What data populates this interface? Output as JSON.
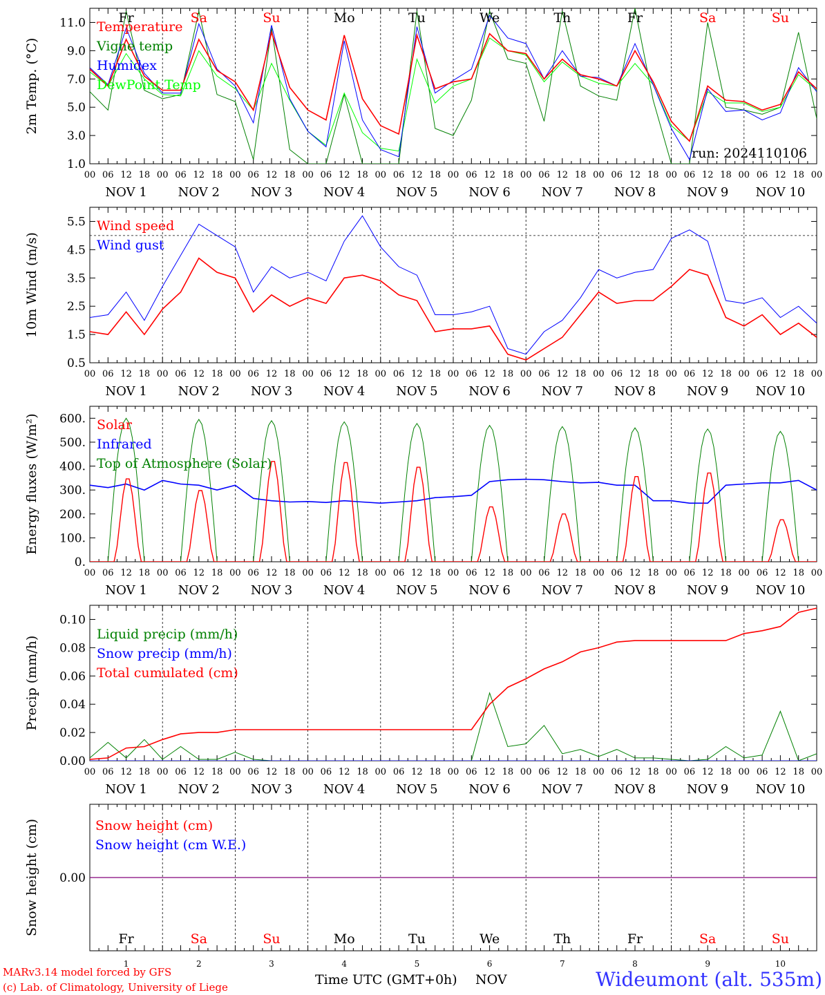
{
  "chart_data": [
    {
      "type": "line",
      "ylabel": "2m Temp. (°C)",
      "ylim": [
        1.0,
        12.0
      ],
      "yticks": [
        "1.0",
        "3.0",
        "5.0",
        "7.0",
        "9.0",
        "11.0"
      ],
      "day_labels": [
        "Fr",
        "Sa",
        "Su",
        "Mo",
        "Tu",
        "We",
        "Th",
        "Fr",
        "Sa",
        "Su"
      ],
      "day_label_colors": [
        "#000000",
        "#ff0000",
        "#ff0000",
        "#000000",
        "#000000",
        "#000000",
        "#000000",
        "#000000",
        "#ff0000",
        "#ff0000"
      ],
      "run_label": "run: 2024110106",
      "x_hours": [
        0,
        6,
        12,
        18,
        24,
        30,
        36,
        42,
        48,
        54,
        60,
        66,
        72,
        78,
        84,
        90,
        96,
        102,
        108,
        114,
        120,
        126,
        132,
        138,
        144,
        150,
        156,
        162,
        168,
        174,
        180,
        186,
        192,
        198,
        204,
        210,
        216,
        222,
        228,
        234,
        240
      ],
      "series": [
        {
          "name": "Temperature",
          "color": "#ff0000",
          "values": [
            7.7,
            6.5,
            9.8,
            7.2,
            6.2,
            6.2,
            9.8,
            7.6,
            6.8,
            4.8,
            10.3,
            6.4,
            4.8,
            4.1,
            10.1,
            5.6,
            3.7,
            3.1,
            10.1,
            6.3,
            6.8,
            7.0,
            10.2,
            9.0,
            8.8,
            7.0,
            8.4,
            7.3,
            7.0,
            6.5,
            9.0,
            6.8,
            4.0,
            2.6,
            6.5,
            5.5,
            5.4,
            4.8,
            5.2,
            7.5,
            6.3
          ]
        },
        {
          "name": "Vigne temp",
          "color": "#008000",
          "values": [
            6.1,
            4.8,
            11.8,
            6.2,
            5.6,
            5.9,
            11.8,
            5.9,
            5.4,
            1.3,
            10.6,
            2.0,
            1.0,
            1.0,
            5.9,
            1.0,
            1.0,
            1.0,
            11.8,
            3.5,
            3.0,
            5.5,
            11.8,
            8.4,
            8.1,
            4.0,
            11.8,
            6.5,
            5.8,
            5.5,
            12.0,
            5.5,
            1.0,
            1.0,
            11.0,
            5.0,
            4.8,
            4.5,
            5.0,
            10.3,
            4.2
          ]
        },
        {
          "name": "Humidex",
          "color": "#0000ff",
          "values": [
            7.8,
            6.6,
            10.6,
            7.4,
            6.0,
            6.0,
            10.9,
            7.7,
            6.5,
            3.9,
            10.8,
            5.6,
            3.3,
            2.2,
            9.7,
            4.1,
            2.0,
            1.5,
            10.7,
            6.0,
            6.9,
            7.7,
            11.5,
            9.9,
            9.5,
            7.0,
            9.0,
            7.2,
            7.1,
            6.5,
            9.5,
            6.6,
            3.5,
            1.3,
            6.3,
            4.7,
            4.8,
            4.1,
            4.6,
            7.8,
            6.1
          ]
        },
        {
          "name": "DewPoint Temp",
          "color": "#00ff00",
          "values": [
            7.5,
            6.5,
            8.8,
            7.0,
            5.9,
            5.8,
            9.0,
            7.2,
            6.3,
            4.8,
            8.1,
            5.5,
            3.3,
            2.3,
            6.0,
            3.2,
            2.1,
            1.9,
            8.4,
            5.3,
            6.5,
            7.0,
            9.9,
            9.0,
            8.7,
            6.8,
            8.2,
            7.2,
            6.7,
            6.5,
            8.1,
            6.6,
            3.7,
            2.6,
            6.1,
            5.3,
            5.3,
            4.7,
            5.0,
            7.3,
            6.2
          ]
        }
      ]
    },
    {
      "type": "line",
      "ylabel": "10m Wind (m/s)",
      "ylim": [
        0.5,
        6.0
      ],
      "yticks": [
        "0.5",
        "1.5",
        "2.5",
        "3.5",
        "4.5",
        "5.5"
      ],
      "ref_line": 5.0,
      "x_hours": [
        0,
        6,
        12,
        18,
        24,
        30,
        36,
        42,
        48,
        54,
        60,
        66,
        72,
        78,
        84,
        90,
        96,
        102,
        108,
        114,
        120,
        126,
        132,
        138,
        144,
        150,
        156,
        162,
        168,
        174,
        180,
        186,
        192,
        198,
        204,
        210,
        216,
        222,
        228,
        234,
        240
      ],
      "series": [
        {
          "name": "Wind speed",
          "color": "#ff0000",
          "values": [
            1.6,
            1.5,
            2.3,
            1.5,
            2.4,
            3.0,
            4.2,
            3.7,
            3.5,
            2.3,
            2.9,
            2.5,
            2.8,
            2.6,
            3.5,
            3.6,
            3.4,
            2.9,
            2.7,
            1.6,
            1.7,
            1.7,
            1.8,
            0.8,
            0.6,
            1.0,
            1.4,
            2.2,
            3.0,
            2.6,
            2.7,
            2.7,
            3.2,
            3.8,
            3.6,
            2.1,
            1.8,
            2.2,
            1.5,
            1.9,
            1.4
          ]
        },
        {
          "name": "Wind gust",
          "color": "#0000ff",
          "values": [
            2.1,
            2.2,
            3.0,
            2.0,
            3.2,
            4.3,
            5.4,
            5.0,
            4.6,
            3.0,
            3.9,
            3.5,
            3.7,
            3.4,
            4.8,
            5.7,
            4.6,
            3.9,
            3.6,
            2.2,
            2.2,
            2.3,
            2.5,
            1.0,
            0.8,
            1.6,
            2.0,
            2.8,
            3.8,
            3.5,
            3.7,
            3.8,
            4.9,
            5.2,
            4.8,
            2.7,
            2.6,
            2.8,
            2.1,
            2.5,
            1.9
          ]
        }
      ]
    },
    {
      "type": "line",
      "ylabel": "Energy fluxes (W/m²)",
      "ylim": [
        0,
        650
      ],
      "yticks": [
        "0.",
        "100.",
        "200.",
        "300.",
        "400.",
        "500.",
        "600."
      ],
      "solar_peaks": [
        355,
        305,
        430,
        425,
        405,
        235,
        205,
        365,
        380,
        180
      ],
      "toa_peaks": [
        600,
        595,
        590,
        585,
        578,
        570,
        565,
        560,
        555,
        545
      ],
      "infrared": {
        "x_hours": [
          0,
          6,
          12,
          18,
          24,
          30,
          36,
          42,
          48,
          54,
          60,
          66,
          72,
          78,
          84,
          90,
          96,
          102,
          108,
          114,
          120,
          126,
          132,
          138,
          144,
          150,
          156,
          162,
          168,
          174,
          180,
          186,
          192,
          198,
          204,
          210,
          216,
          222,
          228,
          234,
          240
        ],
        "values": [
          320,
          310,
          325,
          300,
          340,
          325,
          320,
          300,
          320,
          265,
          255,
          250,
          252,
          248,
          255,
          250,
          245,
          250,
          255,
          268,
          272,
          278,
          335,
          343,
          345,
          343,
          335,
          330,
          332,
          320,
          320,
          255,
          255,
          245,
          245,
          320,
          325,
          330,
          330,
          340,
          300
        ]
      },
      "series": [
        {
          "name": "Solar",
          "color": "#ff0000"
        },
        {
          "name": "Infrared",
          "color": "#0000ff"
        },
        {
          "name": "Top of Atmosphere (Solar)",
          "color": "#008000"
        }
      ]
    },
    {
      "type": "line",
      "ylabel": "Precip (mm/h)",
      "ylim": [
        0,
        0.11
      ],
      "yticks": [
        "0.00",
        "0.02",
        "0.04",
        "0.06",
        "0.08",
        "0.10"
      ],
      "x_hours": [
        0,
        6,
        12,
        18,
        24,
        30,
        36,
        42,
        48,
        54,
        60,
        66,
        72,
        78,
        84,
        90,
        96,
        102,
        108,
        114,
        120,
        126,
        132,
        138,
        144,
        150,
        156,
        162,
        168,
        174,
        180,
        186,
        192,
        198,
        204,
        210,
        216,
        222,
        228,
        234,
        240
      ],
      "series": [
        {
          "name": "Liquid precip (mm/h)",
          "color": "#008000",
          "values": [
            0.002,
            0.013,
            0.002,
            0.015,
            0.001,
            0.01,
            0.001,
            0.001,
            0.006,
            0.001,
            0.0,
            0.0,
            0.0,
            0.0,
            0.0,
            0.0,
            0.0,
            0.0,
            0.0,
            0.0,
            0.0,
            0.0,
            0.048,
            0.01,
            0.012,
            0.025,
            0.005,
            0.008,
            0.003,
            0.008,
            0.002,
            0.002,
            0.001,
            0.0,
            0.001,
            0.01,
            0.002,
            0.004,
            0.035,
            0.0,
            0.005
          ]
        },
        {
          "name": "Snow precip (mm/h)",
          "color": "#0000ff",
          "values": [
            0.0,
            0.0,
            0.0,
            0.0,
            0.0,
            0.0,
            0.0,
            0.0,
            0.0,
            0.0,
            0.0,
            0.0,
            0.0,
            0.0,
            0.0,
            0.0,
            0.0,
            0.0,
            0.0,
            0.0,
            0.0,
            0.0,
            0.0,
            0.0,
            0.0,
            0.0,
            0.0,
            0.0,
            0.0,
            0.0,
            0.0,
            0.0,
            0.0,
            0.0,
            0.0,
            0.0,
            0.0,
            0.0,
            0.0,
            0.0,
            0.0
          ]
        },
        {
          "name": "Total cumulated (cm)",
          "color": "#ff0000",
          "values": [
            0.001,
            0.002,
            0.009,
            0.01,
            0.015,
            0.019,
            0.02,
            0.02,
            0.022,
            0.022,
            0.022,
            0.022,
            0.022,
            0.022,
            0.022,
            0.022,
            0.022,
            0.022,
            0.022,
            0.022,
            0.022,
            0.022,
            0.04,
            0.052,
            0.058,
            0.065,
            0.07,
            0.077,
            0.08,
            0.084,
            0.085,
            0.085,
            0.085,
            0.085,
            0.085,
            0.085,
            0.09,
            0.092,
            0.095,
            0.105,
            0.108
          ]
        }
      ]
    },
    {
      "type": "line",
      "ylabel": "Snow height (cm)",
      "yticks": [
        "0.00"
      ],
      "series": [
        {
          "name": "Snow height (cm)",
          "color": "#ff0000",
          "values": [
            0,
            0
          ]
        },
        {
          "name": "Snow height (cm W.E.)",
          "color": "#0000ff",
          "values": [
            0,
            0
          ]
        }
      ],
      "day_labels": [
        "Fr",
        "Sa",
        "Su",
        "Mo",
        "Tu",
        "We",
        "Th",
        "Fr",
        "Sa",
        "Su"
      ],
      "day_numbers": [
        "1",
        "2",
        "3",
        "4",
        "5",
        "6",
        "7",
        "8",
        "9",
        "10"
      ]
    }
  ],
  "x_axis": {
    "hour_labels": [
      "00",
      "06",
      "12",
      "18"
    ],
    "final_hour_label": "00",
    "date_labels": [
      "NOV  1",
      "NOV  2",
      "NOV  3",
      "NOV  4",
      "NOV  5",
      "NOV  6",
      "NOV  7",
      "NOV  8",
      "NOV  9",
      "NOV 10"
    ],
    "title": "Time UTC (GMT+0h)",
    "month": "NOV"
  },
  "footer": {
    "model": "MARv3.14 model forced by GFS",
    "credit": "(c) Lab. of Climatology, University of Liege",
    "station": "Wideumont (alt. 535m)",
    "station_color": "#3333ff",
    "credit_color": "#ff0000"
  }
}
